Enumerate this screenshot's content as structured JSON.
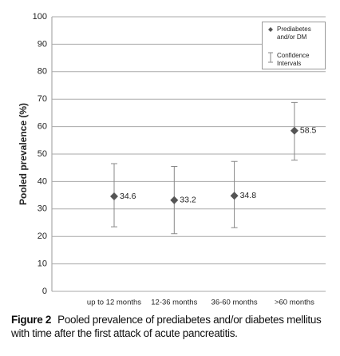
{
  "chart_data": {
    "type": "errorpoint",
    "ylabel": "Pooled prevalence (%)",
    "categories": [
      "up to 12 months",
      "12-36 months",
      "36-60 months",
      ">60 months"
    ],
    "series": [
      {
        "name": "Prediabetes and/or DM",
        "color": "#555555",
        "values": [
          34.6,
          33.2,
          34.8,
          58.5
        ],
        "ci_low": [
          23.5,
          21.0,
          23.2,
          47.8
        ],
        "ci_high": [
          46.5,
          45.5,
          47.3,
          68.8
        ]
      }
    ],
    "error_legend": "Confidence Intervals",
    "error_color": "#888888",
    "ylim": [
      0,
      100
    ],
    "yticks": [
      0,
      10,
      20,
      30,
      40,
      50,
      60,
      70,
      80,
      90,
      100
    ],
    "grid": true,
    "legend": "upper right",
    "caption_label": "Figure 2",
    "caption": "Pooled prevalence of prediabetes and/or diabetes mellitus with time after the first attack of acute pancreatitis."
  }
}
